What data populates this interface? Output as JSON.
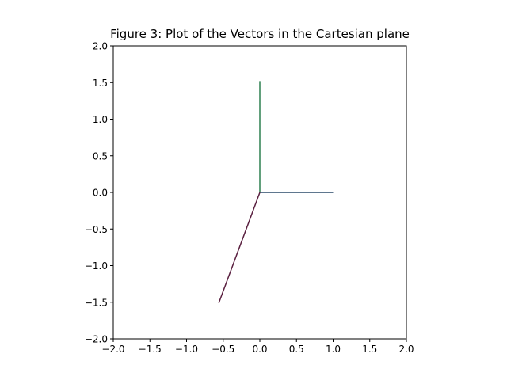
{
  "chart_data": {
    "type": "line",
    "title": "Figure 3: Plot of the Vectors in the Cartesian plane",
    "xlabel": "",
    "ylabel": "",
    "xlim": [
      -2.0,
      2.0
    ],
    "ylim": [
      -2.0,
      2.0
    ],
    "xticks": [
      "−2.0",
      "−1.5",
      "−1.0",
      "−0.5",
      "0.0",
      "0.5",
      "1.0",
      "1.5",
      "2.0"
    ],
    "yticks": [
      "−2.0",
      "−1.5",
      "−1.0",
      "−0.5",
      "0.0",
      "0.5",
      "1.0",
      "1.5",
      "2.0"
    ],
    "xtick_values": [
      -2.0,
      -1.5,
      -1.0,
      -0.5,
      0.0,
      0.5,
      1.0,
      1.5,
      2.0
    ],
    "ytick_values": [
      -2.0,
      -1.5,
      -1.0,
      -0.5,
      0.0,
      0.5,
      1.0,
      1.5,
      2.0
    ],
    "grid": false,
    "legend": false,
    "series": [
      {
        "x": [
          0,
          1.0
        ],
        "y": [
          0,
          0
        ],
        "color": "#2a4a6a"
      },
      {
        "x": [
          0,
          0
        ],
        "y": [
          0,
          1.52
        ],
        "color": "#2e8050"
      },
      {
        "x": [
          0,
          -0.56
        ],
        "y": [
          0,
          -1.51
        ],
        "color": "#5a2040"
      }
    ]
  }
}
